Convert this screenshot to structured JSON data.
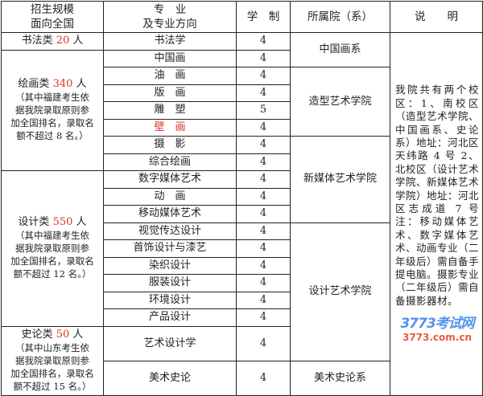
{
  "headers": {
    "scale": [
      "招生规模",
      "面向全国"
    ],
    "major": [
      "专　业",
      "及专业方向"
    ],
    "years": "学　制",
    "institute": "所属院（系）",
    "note": "说　　明"
  },
  "groups": [
    {
      "label": "书法类",
      "count": "20",
      "unit": "人",
      "note_lines": []
    },
    {
      "label": "绘画类",
      "count": "340",
      "unit": "人",
      "note_lines": [
        "（其中福建考生依",
        "据我院录取原则参",
        "加全国排名，录取名",
        "额不超过 8 名。）"
      ]
    },
    {
      "label": "设计类",
      "count": "550",
      "unit": "人",
      "note_lines": [
        "（其中福建考生依",
        "据我院录取原则参",
        "加全国排名，录取名",
        "额不超过 12 名。）"
      ]
    },
    {
      "label": "史论类",
      "count": "50",
      "unit": "人",
      "note_lines": [
        "（其中山东考生依",
        "据我院录取原则参",
        "加全国排名，录取名",
        "额不超过 15 名。）"
      ]
    }
  ],
  "majors": [
    {
      "name": "书法学",
      "years": "4"
    },
    {
      "name": "中国画",
      "years": "4"
    },
    {
      "name": "油　画",
      "years": "4"
    },
    {
      "name": "版　画",
      "years": "4"
    },
    {
      "name": "雕　塑",
      "years": "5"
    },
    {
      "name": "壁　画",
      "years": "4"
    },
    {
      "name": "摄　影",
      "years": "4"
    },
    {
      "name": "综合绘画",
      "years": "4"
    },
    {
      "name": "数字媒体艺术",
      "years": "4"
    },
    {
      "name": "动　画",
      "years": "4"
    },
    {
      "name": "移动媒体艺术",
      "years": "4"
    },
    {
      "name": "视觉传达设计",
      "years": "4"
    },
    {
      "name": "首饰设计与漆艺",
      "years": "4"
    },
    {
      "name": "染织设计",
      "years": "4"
    },
    {
      "name": "服装设计",
      "years": "4"
    },
    {
      "name": "环境设计",
      "years": "4"
    },
    {
      "name": "产品设计",
      "years": "4"
    },
    {
      "name": "艺术设计学",
      "years": "4"
    },
    {
      "name": "美术史论",
      "years": "4"
    }
  ],
  "institutes": [
    "中国画系",
    "造型艺术学院",
    "新媒体艺术学院",
    "设计艺术学院",
    "美术史论系"
  ],
  "note_text": "我院共有两个校区：1、南校区（造型艺术学院、中国画系、史论系）地址：河北区天纬路 4 号 2、北校区（设计艺术学院、新媒体艺术学院）地址：河北区志成道 7 号 注：移动媒体艺术、数字媒体艺术、动画专业（二年级后）需自备手提电脑。摄影专业（二年级后）需自备摄影器材。",
  "watermark": {
    "logo": "3773考试网",
    "url": "3773.com.cn"
  },
  "colors": {
    "highlight": "#e0302a",
    "border": "#222222"
  }
}
